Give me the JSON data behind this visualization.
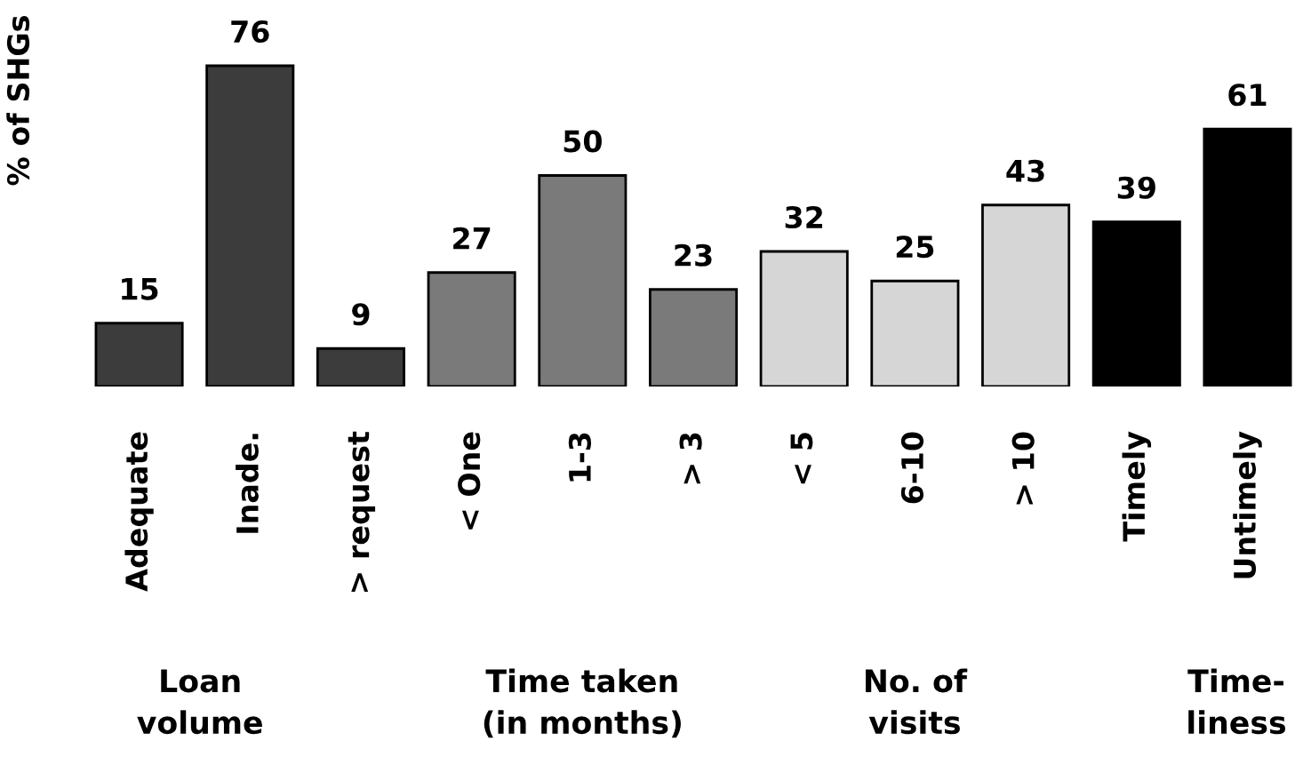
{
  "chart_data": {
    "type": "bar",
    "ylabel": "% of SHGs",
    "categories": [
      "Adequate",
      "Inade.",
      "> request",
      "< One",
      "1-3",
      "> 3",
      "< 5",
      "6-10",
      "> 10",
      "Timely",
      "Untimely"
    ],
    "values": [
      15,
      76,
      9,
      27,
      50,
      23,
      32,
      25,
      43,
      39,
      61
    ],
    "colors": [
      "#3c3c3c",
      "#3c3c3c",
      "#3c3c3c",
      "#7a7a7a",
      "#7a7a7a",
      "#7a7a7a",
      "#d6d6d6",
      "#d6d6d6",
      "#d6d6d6",
      "#000000",
      "#000000"
    ],
    "data_labels": true,
    "annotations": [
      "Loan\nvolume",
      "Time taken\n(in months)",
      "No. of\nvisits",
      "Time-\nliness"
    ]
  }
}
